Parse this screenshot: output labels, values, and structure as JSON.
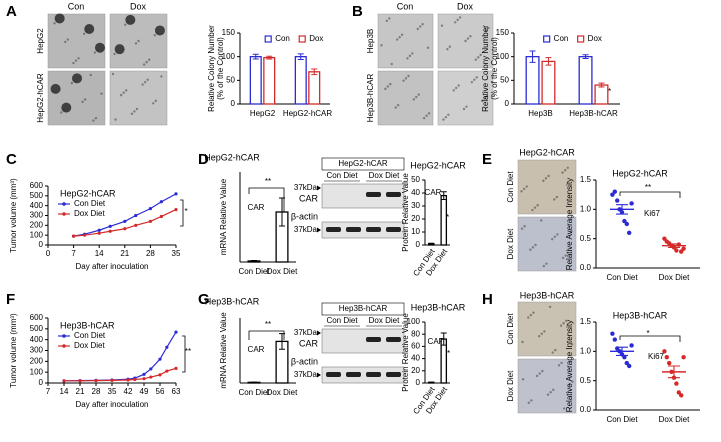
{
  "panel_labels": [
    "A",
    "B",
    "C",
    "D",
    "E",
    "F",
    "G",
    "H"
  ],
  "images": [
    {
      "columns": [
        "Con",
        "Dox"
      ],
      "rows": [
        "HepG2",
        "HepG2-hCAR"
      ]
    },
    {
      "columns": [
        "Con",
        "Dox"
      ],
      "rows": [
        "Hep3B",
        "Hep3B-hCAR"
      ]
    },
    {
      "title": "HepG2-hCAR",
      "rows": [
        "Con Diet",
        "Dox Diet"
      ]
    },
    {
      "title": "Hep3B-hCAR",
      "rows": [
        "Con Diet",
        "Dox Diet"
      ]
    }
  ],
  "blots": [
    {
      "title": "HepG2-hCAR",
      "lanes": [
        "Con Diet",
        "Dox Diet"
      ],
      "bands": [
        "CAR",
        "β-actin"
      ],
      "markers": [
        "37kDa",
        "37kDa"
      ]
    },
    {
      "title": "Hep3B-hCAR",
      "lanes": [
        "Con Diet",
        "Dox Diet"
      ],
      "bands": [
        "CAR",
        "β-actin"
      ],
      "markers": [
        "37kDa",
        "37kDa"
      ]
    }
  ],
  "chart_data": [
    {
      "type": "bar",
      "ylabel": [
        "Relative Colony Number",
        "(% of the Control)"
      ],
      "categories": [
        "HepG2",
        "HepG2-hCAR"
      ],
      "series": [
        {
          "name": "Con",
          "color": "#2b2bd6",
          "values": [
            100,
            100
          ],
          "errors": [
            5,
            6
          ]
        },
        {
          "name": "Dox",
          "color": "#d42a2a",
          "values": [
            98,
            68
          ],
          "errors": [
            3,
            6
          ]
        }
      ],
      "ylim": [
        0,
        150
      ],
      "yticks": [
        0,
        50,
        100,
        150
      ],
      "legend": "upper right",
      "annotations": [
        "**"
      ]
    },
    {
      "type": "bar",
      "ylabel": [
        "Relative Colony Number",
        "(% of the Control)"
      ],
      "categories": [
        "Hep3B",
        "Hep3B-hCAR"
      ],
      "series": [
        {
          "name": "Con",
          "color": "#2b2bd6",
          "values": [
            100,
            100
          ],
          "errors": [
            12,
            4
          ]
        },
        {
          "name": "Dox",
          "color": "#d42a2a",
          "values": [
            90,
            40
          ],
          "errors": [
            8,
            4
          ]
        }
      ],
      "ylim": [
        0,
        150
      ],
      "yticks": [
        0,
        50,
        100,
        150
      ],
      "legend": "upper right",
      "annotations": [
        "**"
      ]
    },
    {
      "type": "line",
      "title": "HepG2-hCAR",
      "ylabel": "Tumor volume (mm³)",
      "xlabel": "Day after inoculation",
      "x": [
        7,
        10,
        14,
        17,
        21,
        24,
        28,
        31,
        35
      ],
      "series": [
        {
          "name": "Con Diet",
          "color": "#2b2bd6",
          "values": [
            90,
            110,
            150,
            190,
            240,
            300,
            370,
            440,
            520
          ]
        },
        {
          "name": "Dox Diet",
          "color": "#d42a2a",
          "values": [
            90,
            100,
            120,
            140,
            165,
            200,
            240,
            290,
            360
          ]
        }
      ],
      "xlim": [
        0,
        35
      ],
      "xticks": [
        0,
        7,
        14,
        21,
        28,
        35
      ],
      "ylim": [
        0,
        600
      ],
      "yticks": [
        0,
        100,
        200,
        300,
        400,
        500,
        600
      ],
      "legend": "upper left",
      "annotations": [
        "*"
      ]
    },
    {
      "type": "bar",
      "title": "HepG2-hCAR",
      "ylabel": "mRNA Relative Value",
      "categories": [
        "Con Diet",
        "Dox Diet"
      ],
      "values": [
        1,
        50
      ],
      "errors": [
        0.5,
        14
      ],
      "color": "#000000",
      "ylim": [
        0,
        90
      ],
      "annotations": [
        "CAR",
        "**"
      ]
    },
    {
      "type": "bar",
      "title": "HepG2-hCAR",
      "ylabel": "Protein Relative Value",
      "categories": [
        "Con Diet",
        "Dox Diet"
      ],
      "values": [
        1,
        38
      ],
      "errors": [
        0.3,
        3
      ],
      "color": "#000000",
      "ylim": [
        0,
        50
      ],
      "yticks": [
        0,
        10,
        20,
        30,
        40,
        50
      ],
      "annotations": [
        "CAR",
        "**"
      ]
    },
    {
      "type": "strip",
      "title": "HepG2-hCAR",
      "ylabel": "Relative Average Intensity",
      "categories": [
        "Con Diet",
        "Dox Diet"
      ],
      "colors": [
        "#2b2bd6",
        "#d42a2a"
      ],
      "points": [
        [
          1.25,
          1.3,
          1.15,
          1.0,
          0.95,
          0.8,
          0.75,
          0.6,
          1.1
        ],
        [
          0.5,
          0.45,
          0.42,
          0.38,
          0.35,
          0.3,
          0.4,
          0.28,
          0.33
        ]
      ],
      "means": [
        1.0,
        0.38
      ],
      "sems": [
        0.08,
        0.03
      ],
      "ylim": [
        0,
        1.5
      ],
      "yticks": [
        {
          "value": 0,
          "label": "0.0"
        },
        0.5,
        {
          "value": 1,
          "label": "1.0"
        },
        1.5
      ],
      "annotations": [
        "Ki67",
        "**"
      ]
    },
    {
      "type": "line",
      "title": "Hep3B-hCAR",
      "ylabel": "Tumor volume (mm³)",
      "xlabel": "Day after inoculation",
      "x": [
        14,
        21,
        28,
        35,
        42,
        45,
        49,
        52,
        56,
        59,
        63
      ],
      "series": [
        {
          "name": "Con Diet",
          "color": "#2b2bd6",
          "values": [
            20,
            22,
            25,
            28,
            35,
            45,
            80,
            130,
            220,
            330,
            470
          ]
        },
        {
          "name": "Dox Diet",
          "color": "#d42a2a",
          "values": [
            20,
            20,
            22,
            24,
            28,
            32,
            40,
            55,
            75,
            110,
            135
          ]
        }
      ],
      "xlim": [
        7,
        63
      ],
      "xticks": [
        7,
        14,
        21,
        28,
        35,
        42,
        49,
        56,
        63
      ],
      "ylim": [
        0,
        600
      ],
      "yticks": [
        0,
        100,
        200,
        300,
        400,
        500,
        600
      ],
      "legend": "upper left",
      "annotations": [
        "**"
      ]
    },
    {
      "type": "bar",
      "title": "Hep3B-hCAR",
      "ylabel": "mRNA Relative Value",
      "categories": [
        "Con Diet",
        "Dox Diet"
      ],
      "values": [
        5,
        320
      ],
      "errors": [
        2,
        60
      ],
      "color": "#000000",
      "ylim": [
        0,
        500
      ],
      "annotations": [
        "CAR",
        "**"
      ]
    },
    {
      "type": "bar",
      "title": "Hep3B-hCAR",
      "ylabel": "Protein Relative Value",
      "categories": [
        "Con Diet",
        "Dox Diet"
      ],
      "values": [
        1,
        72
      ],
      "errors": [
        0.5,
        10
      ],
      "color": "#000000",
      "ylim": [
        0,
        100
      ],
      "yticks": [
        0,
        20,
        40,
        60,
        80,
        100
      ],
      "annotations": [
        "CAR",
        "**"
      ]
    },
    {
      "type": "strip",
      "title": "Hep3B-hCAR",
      "ylabel": "Relative Average Intensity",
      "categories": [
        "Con Diet",
        "Dox Diet"
      ],
      "colors": [
        "#2b2bd6",
        "#d42a2a"
      ],
      "points": [
        [
          1.3,
          1.2,
          1.05,
          1.0,
          0.95,
          0.9,
          0.8,
          0.75,
          1.1
        ],
        [
          1.0,
          0.9,
          0.8,
          0.65,
          0.55,
          0.45,
          0.3,
          0.25,
          0.9
        ]
      ],
      "means": [
        1.0,
        0.65
      ],
      "sems": [
        0.07,
        0.1
      ],
      "ylim": [
        0,
        1.5
      ],
      "yticks": [
        {
          "value": 0,
          "label": "0.0"
        },
        0.5,
        {
          "value": 1,
          "label": "1.0"
        },
        1.5
      ],
      "annotations": [
        "Ki67",
        "*"
      ]
    }
  ]
}
